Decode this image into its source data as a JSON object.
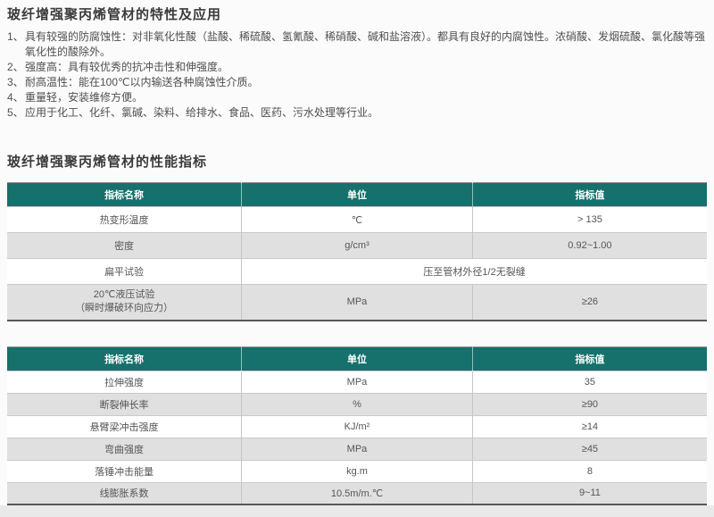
{
  "colors": {
    "table_header_teal": "#16706b",
    "row_alt_gray": "#e0e0e0"
  },
  "section_features": {
    "title": "玻纤增强聚丙烯管材的特性及应用",
    "items": [
      {
        "num": "1、",
        "text": "具有较强的防腐蚀性：对非氧化性酸（盐酸、稀硫酸、氢氰酸、稀硝酸、碱和盐溶液）。都具有良好的内腐蚀性。浓硝酸、发烟硫酸、氯化酸等强氧化性的酸除外。"
      },
      {
        "num": "2、",
        "text": "强度高：具有较优秀的抗冲击性和伸强度。"
      },
      {
        "num": "3、",
        "text": "耐高温性：能在100℃以内输送各种腐蚀性介质。"
      },
      {
        "num": "4、",
        "text": "重量轻，安装维修方便。"
      },
      {
        "num": "5、",
        "text": "应用于化工、化纤、氯碱、染料、给排水、食品、医药、污水处理等行业。"
      }
    ]
  },
  "section_performance": {
    "title": "玻纤增强聚丙烯管材的性能指标"
  },
  "table1": {
    "headers": [
      "指标名称",
      "单位",
      "指标值"
    ],
    "rows": [
      {
        "c0": "热变形温度",
        "c1": "℃",
        "c2": "> 135"
      },
      {
        "c0": "密度",
        "c1": "g/cm³",
        "c2": "0.92~1.00"
      },
      {
        "c0": "扁平试验",
        "merged": "压至管材外径1/2无裂缝"
      },
      {
        "c0_line1": "20℃液压试验",
        "c0_line2": "（瞬时爆破环向应力）",
        "c1": "MPa",
        "c2": "≥26"
      }
    ]
  },
  "table2": {
    "headers": [
      "指标名称",
      "单位",
      "指标值"
    ],
    "rows": [
      {
        "c0": "拉伸强度",
        "c1": "MPa",
        "c2": "35"
      },
      {
        "c0": "断裂伸长率",
        "c1": "%",
        "c2": "≥90"
      },
      {
        "c0": "悬臂梁冲击强度",
        "c1": "KJ/m²",
        "c2": "≥14"
      },
      {
        "c0": "弯曲强度",
        "c1": "MPa",
        "c2": "≥45"
      },
      {
        "c0": "落锤冲击能量",
        "c1": "kg.m",
        "c2": "8"
      },
      {
        "c0": "线膨胀系数",
        "c1": "10.5m/m.℃",
        "c2": "9~11"
      }
    ]
  }
}
